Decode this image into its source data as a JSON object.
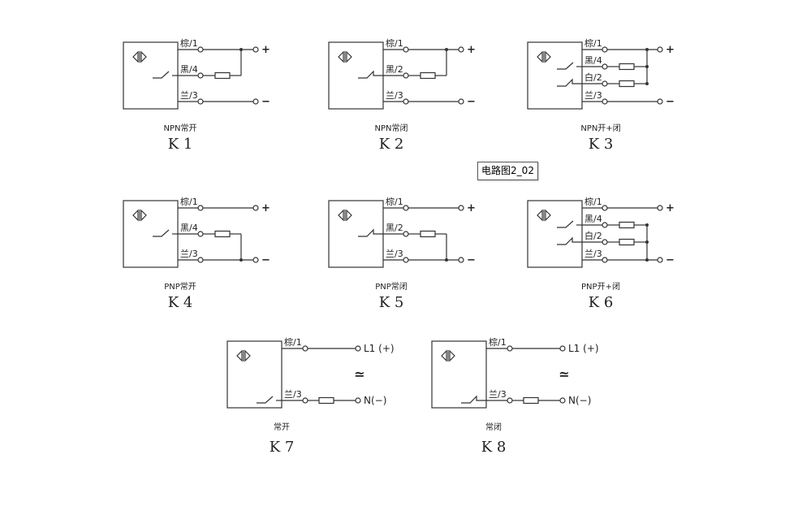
{
  "tooltip": "电路图2_02",
  "colors": {
    "line": "#333333",
    "text": "#222222"
  },
  "icon": "proximity-sensor-icon",
  "diagrams": [
    {
      "id": "K1",
      "type": "npn",
      "switch": "no",
      "caption": "NPN常开",
      "wires": [
        "棕/1",
        "黑/4",
        "兰/3"
      ],
      "terminals": [
        "+",
        "−"
      ]
    },
    {
      "id": "K2",
      "type": "npn",
      "switch": "nc",
      "caption": "NPN常闭",
      "wires": [
        "棕/1",
        "黑/2",
        "兰/3"
      ],
      "terminals": [
        "+",
        "−"
      ]
    },
    {
      "id": "K3",
      "type": "npn4",
      "caption": "NPN开+闭",
      "wires": [
        "棕/1",
        "黑/4",
        "白/2",
        "兰/3"
      ],
      "terminals": [
        "+",
        "−"
      ]
    },
    {
      "id": "K4",
      "type": "pnp",
      "switch": "no",
      "caption": "PNP常开",
      "wires": [
        "棕/1",
        "黑/4",
        "兰/3"
      ],
      "terminals": [
        "+",
        "−"
      ]
    },
    {
      "id": "K5",
      "type": "pnp",
      "switch": "nc",
      "caption": "PNP常闭",
      "wires": [
        "棕/1",
        "黑/2",
        "兰/3"
      ],
      "terminals": [
        "+",
        "−"
      ]
    },
    {
      "id": "K6",
      "type": "pnp4",
      "caption": "PNP开+闭",
      "wires": [
        "棕/1",
        "黑/4",
        "白/2",
        "兰/3"
      ],
      "terminals": [
        "+",
        "−"
      ]
    },
    {
      "id": "K7",
      "type": "ac",
      "switch": "no",
      "caption": "常开",
      "wires": [
        "棕/1",
        "兰/3"
      ],
      "terminals": [
        "L1 (+)",
        "N(−)"
      ],
      "ac_symbol": "≃"
    },
    {
      "id": "K8",
      "type": "ac",
      "switch": "nc",
      "caption": "常闭",
      "wires": [
        "棕/1",
        "兰/3"
      ],
      "terminals": [
        "L1 (+)",
        "N(−)"
      ],
      "ac_symbol": "≃"
    }
  ]
}
